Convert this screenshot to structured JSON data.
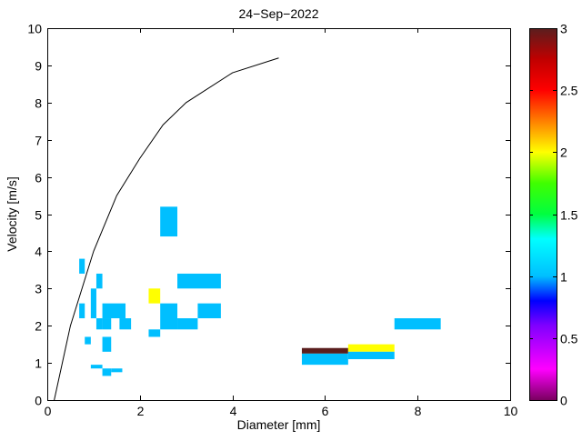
{
  "chart_data": {
    "type": "heatmap",
    "title": "24−Sep−2022",
    "xlabel": "Diameter [mm]",
    "ylabel": "Velocity [m/s]",
    "xlim": [
      0,
      10
    ],
    "ylim": [
      0,
      10
    ],
    "xticks": [
      0,
      2,
      4,
      6,
      8,
      10
    ],
    "xtick_labels": [
      "0",
      "2",
      "4",
      "6",
      "8",
      "10"
    ],
    "yticks": [
      0,
      1,
      2,
      3,
      4,
      5,
      6,
      7,
      8,
      9,
      10
    ],
    "ytick_labels": [
      "0",
      "1",
      "2",
      "3",
      "4",
      "5",
      "6",
      "7",
      "8",
      "9",
      "10"
    ],
    "grid": false,
    "colorbar": {
      "range": [
        0,
        3
      ],
      "ticks": [
        0,
        0.5,
        1,
        1.5,
        2,
        2.5,
        3
      ],
      "tick_labels": [
        "0",
        "0.5",
        "1",
        "1.5",
        "2",
        "2.5",
        "3"
      ],
      "colormap_stops": [
        {
          "value": 0,
          "color": "#7a0060"
        },
        {
          "value": 0.25,
          "color": "#ff00ff"
        },
        {
          "value": 0.6,
          "color": "#8000ff"
        },
        {
          "value": 0.8,
          "color": "#0000ff"
        },
        {
          "value": 1.0,
          "color": "#00bfff"
        },
        {
          "value": 1.3,
          "color": "#00ffff"
        },
        {
          "value": 1.5,
          "color": "#00ff40"
        },
        {
          "value": 1.75,
          "color": "#40ff00"
        },
        {
          "value": 2.0,
          "color": "#ffff00"
        },
        {
          "value": 2.25,
          "color": "#ff8000"
        },
        {
          "value": 2.5,
          "color": "#ff0000"
        },
        {
          "value": 2.75,
          "color": "#c00000"
        },
        {
          "value": 3.0,
          "color": "#5a1e1e"
        }
      ]
    },
    "fall_velocity_curve": {
      "x": [
        0.15,
        0.5,
        1.0,
        1.5,
        2.0,
        2.5,
        3.0,
        4.0,
        5.0
      ],
      "y": [
        0,
        2.0,
        4.0,
        5.5,
        6.5,
        7.4,
        8.0,
        8.8,
        9.2
      ]
    },
    "cells": [
      {
        "x0": 0.69,
        "x1": 0.81,
        "y0": 3.4,
        "y1": 3.8,
        "value": 1
      },
      {
        "x0": 0.69,
        "x1": 0.81,
        "y0": 2.2,
        "y1": 2.6,
        "value": 1
      },
      {
        "x0": 0.81,
        "x1": 0.94,
        "y0": 1.5,
        "y1": 1.7,
        "value": 1
      },
      {
        "x0": 0.94,
        "x1": 1.06,
        "y0": 2.2,
        "y1": 3.0,
        "value": 1
      },
      {
        "x0": 1.06,
        "x1": 1.19,
        "y0": 3.0,
        "y1": 3.4,
        "value": 1
      },
      {
        "x0": 1.06,
        "x1": 1.19,
        "y0": 1.9,
        "y1": 2.2,
        "value": 1
      },
      {
        "x0": 1.19,
        "x1": 1.69,
        "y0": 2.2,
        "y1": 2.6,
        "value": 1
      },
      {
        "x0": 1.19,
        "x1": 1.38,
        "y0": 1.9,
        "y1": 2.2,
        "value": 1
      },
      {
        "x0": 1.56,
        "x1": 1.81,
        "y0": 1.9,
        "y1": 2.2,
        "value": 1
      },
      {
        "x0": 1.19,
        "x1": 1.38,
        "y0": 1.3,
        "y1": 1.7,
        "value": 1
      },
      {
        "x0": 0.94,
        "x1": 1.19,
        "y0": 0.85,
        "y1": 0.95,
        "value": 1
      },
      {
        "x0": 1.19,
        "x1": 1.38,
        "y0": 0.65,
        "y1": 0.85,
        "value": 1
      },
      {
        "x0": 1.38,
        "x1": 1.62,
        "y0": 0.75,
        "y1": 0.85,
        "value": 1
      },
      {
        "x0": 2.19,
        "x1": 2.44,
        "y0": 2.6,
        "y1": 3.0,
        "value": 2
      },
      {
        "x0": 2.19,
        "x1": 2.44,
        "y0": 1.7,
        "y1": 1.9,
        "value": 1
      },
      {
        "x0": 2.44,
        "x1": 2.81,
        "y0": 4.4,
        "y1": 5.2,
        "value": 1
      },
      {
        "x0": 2.44,
        "x1": 2.81,
        "y0": 1.9,
        "y1": 2.6,
        "value": 1
      },
      {
        "x0": 2.81,
        "x1": 3.25,
        "y0": 1.9,
        "y1": 2.2,
        "value": 1
      },
      {
        "x0": 2.81,
        "x1": 3.75,
        "y0": 3.0,
        "y1": 3.4,
        "value": 1
      },
      {
        "x0": 3.25,
        "x1": 3.75,
        "y0": 2.2,
        "y1": 2.6,
        "value": 1
      },
      {
        "x0": 5.5,
        "x1": 6.5,
        "y0": 1.25,
        "y1": 1.4,
        "value": 3
      },
      {
        "x0": 5.5,
        "x1": 6.5,
        "y0": 0.95,
        "y1": 1.25,
        "value": 1
      },
      {
        "x0": 6.5,
        "x1": 7.5,
        "y0": 1.3,
        "y1": 1.5,
        "value": 2
      },
      {
        "x0": 6.5,
        "x1": 7.5,
        "y0": 1.1,
        "y1": 1.3,
        "value": 1
      },
      {
        "x0": 7.5,
        "x1": 8.5,
        "y0": 1.9,
        "y1": 2.2,
        "value": 1
      }
    ]
  }
}
